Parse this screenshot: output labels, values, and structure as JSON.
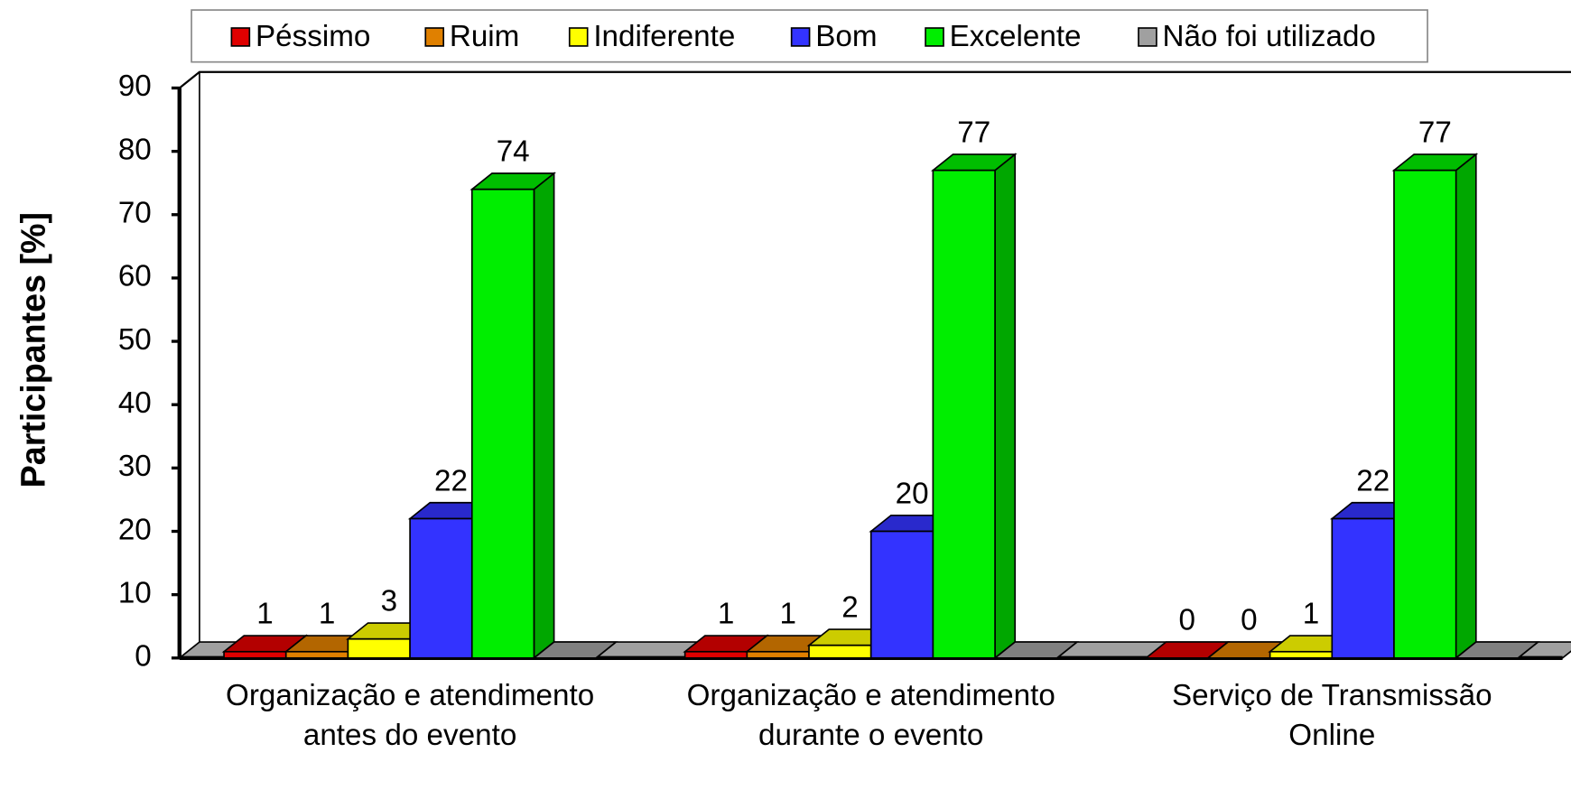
{
  "chart_data": {
    "type": "bar3d",
    "ylabel": "Participantes [%]",
    "categories": [
      "Organização e atendimento antes do evento",
      "Organização e atendimento durante o evento",
      "Serviço de Transmissão Online"
    ],
    "series": [
      {
        "name": "Péssimo",
        "color": "#e00000",
        "values": [
          1,
          1,
          0
        ],
        "data_labels": true
      },
      {
        "name": "Ruim",
        "color": "#e08000",
        "values": [
          1,
          1,
          0
        ],
        "data_labels": true
      },
      {
        "name": "Indiferente",
        "color": "#ffff00",
        "values": [
          3,
          2,
          1
        ],
        "data_labels": true
      },
      {
        "name": "Bom",
        "color": "#3333ff",
        "values": [
          22,
          20,
          22
        ],
        "data_labels": true
      },
      {
        "name": "Excelente",
        "color": "#00ee00",
        "values": [
          74,
          77,
          77
        ],
        "data_labels": true
      },
      {
        "name": "Não foi utilizado",
        "color": "#a0a0a0",
        "values": [
          0,
          0,
          0
        ],
        "data_labels": false
      }
    ],
    "ylim": [
      0,
      90
    ],
    "yticks": [
      0,
      10,
      20,
      30,
      40,
      50,
      60,
      70,
      80,
      90
    ],
    "legend": "top"
  }
}
